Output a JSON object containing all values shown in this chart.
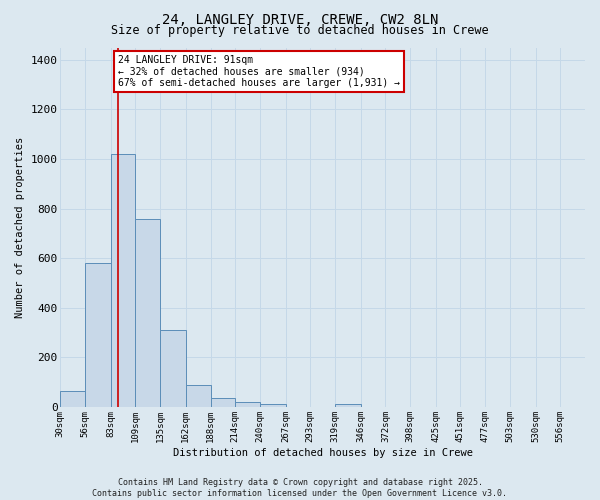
{
  "title_line1": "24, LANGLEY DRIVE, CREWE, CW2 8LN",
  "title_line2": "Size of property relative to detached houses in Crewe",
  "xlabel": "Distribution of detached houses by size in Crewe",
  "ylabel": "Number of detached properties",
  "bin_labels": [
    "30sqm",
    "56sqm",
    "83sqm",
    "109sqm",
    "135sqm",
    "162sqm",
    "188sqm",
    "214sqm",
    "240sqm",
    "267sqm",
    "293sqm",
    "319sqm",
    "346sqm",
    "372sqm",
    "398sqm",
    "425sqm",
    "451sqm",
    "477sqm",
    "503sqm",
    "530sqm",
    "556sqm"
  ],
  "bar_heights": [
    65,
    580,
    1020,
    760,
    310,
    90,
    35,
    20,
    10,
    0,
    0,
    12,
    0,
    0,
    0,
    0,
    0,
    0,
    0,
    0,
    0
  ],
  "bar_color": "#c8d8e8",
  "bar_edge_color": "#5b8db8",
  "grid_color": "#c5d8e8",
  "background_color": "#dce8f0",
  "vline_color": "#cc0000",
  "annotation_text": "24 LANGLEY DRIVE: 91sqm\n← 32% of detached houses are smaller (934)\n67% of semi-detached houses are larger (1,931) →",
  "annotation_box_facecolor": "#ffffff",
  "annotation_box_edgecolor": "#cc0000",
  "ylim": [
    0,
    1450
  ],
  "yticks": [
    0,
    200,
    400,
    600,
    800,
    1000,
    1200,
    1400
  ],
  "copyright_text": "Contains HM Land Registry data © Crown copyright and database right 2025.\nContains public sector information licensed under the Open Government Licence v3.0.",
  "bin_edges": [
    30,
    56,
    83,
    109,
    135,
    162,
    188,
    214,
    240,
    267,
    293,
    319,
    346,
    372,
    398,
    425,
    451,
    477,
    503,
    530,
    556
  ],
  "vline_x": 91,
  "figsize": [
    6.0,
    5.0
  ],
  "dpi": 100
}
